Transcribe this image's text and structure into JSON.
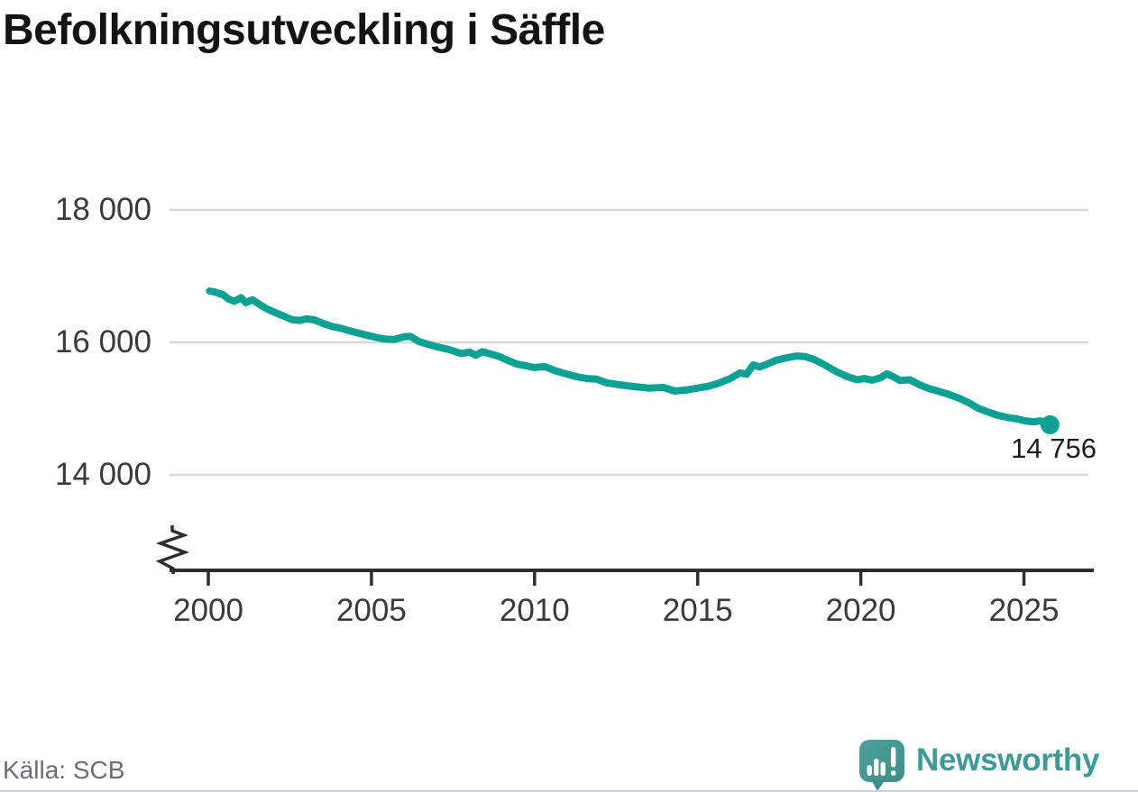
{
  "title": "Befolkningsutveckling i Säffle",
  "source": "Källa: SCB",
  "branding": {
    "name": "Newsworthy"
  },
  "colors": {
    "line": "#0ca193",
    "grid": "#d8d8d8",
    "axis": "#2e2e2e",
    "tick_text": "#3a3a3a",
    "title_text": "#131313",
    "source_text": "#6b6e79",
    "brand_teal": "#3f9a96",
    "brand_icon_light": "#4fa19d",
    "brand_icon_dark": "#3f8d89"
  },
  "chart_data": {
    "type": "line",
    "title": "Befolkningsutveckling i Säffle",
    "xlabel": "",
    "ylabel": "",
    "x_range": [
      1998.8,
      2027.2
    ],
    "y_range_shown": [
      14000,
      18000
    ],
    "y_axis_break": true,
    "grid": "horizontal",
    "legend": "none",
    "y_ticks": [
      {
        "value": 18000,
        "label": "18 000"
      },
      {
        "value": 16000,
        "label": "16 000"
      },
      {
        "value": 14000,
        "label": "14 000"
      }
    ],
    "x_ticks": [
      {
        "value": 2000,
        "label": "2000"
      },
      {
        "value": 2005,
        "label": "2005"
      },
      {
        "value": 2010,
        "label": "2010"
      },
      {
        "value": 2015,
        "label": "2015"
      },
      {
        "value": 2020,
        "label": "2020"
      },
      {
        "value": 2025,
        "label": "2025"
      }
    ],
    "end_label": "14 756",
    "end_value": 14756,
    "series": [
      {
        "name": "Befolkning i Säffle",
        "color": "#0ca193",
        "points": [
          [
            2000.04,
            16775
          ],
          [
            2000.2,
            16760
          ],
          [
            2000.45,
            16720
          ],
          [
            2000.62,
            16655
          ],
          [
            2000.8,
            16620
          ],
          [
            2001.0,
            16675
          ],
          [
            2001.15,
            16600
          ],
          [
            2001.35,
            16645
          ],
          [
            2001.55,
            16580
          ],
          [
            2001.8,
            16505
          ],
          [
            2002.05,
            16450
          ],
          [
            2002.3,
            16400
          ],
          [
            2002.55,
            16345
          ],
          [
            2002.8,
            16330
          ],
          [
            2003.0,
            16355
          ],
          [
            2003.25,
            16340
          ],
          [
            2003.5,
            16290
          ],
          [
            2003.8,
            16240
          ],
          [
            2004.05,
            16215
          ],
          [
            2004.3,
            16180
          ],
          [
            2004.6,
            16140
          ],
          [
            2004.9,
            16105
          ],
          [
            2005.15,
            16075
          ],
          [
            2005.4,
            16050
          ],
          [
            2005.7,
            16045
          ],
          [
            2006.0,
            16085
          ],
          [
            2006.2,
            16090
          ],
          [
            2006.45,
            16015
          ],
          [
            2006.7,
            15975
          ],
          [
            2007.0,
            15935
          ],
          [
            2007.4,
            15890
          ],
          [
            2007.75,
            15830
          ],
          [
            2008.0,
            15855
          ],
          [
            2008.2,
            15805
          ],
          [
            2008.4,
            15860
          ],
          [
            2008.65,
            15825
          ],
          [
            2008.9,
            15790
          ],
          [
            2009.15,
            15735
          ],
          [
            2009.45,
            15675
          ],
          [
            2009.75,
            15645
          ],
          [
            2010.0,
            15620
          ],
          [
            2010.3,
            15635
          ],
          [
            2010.65,
            15570
          ],
          [
            2011.0,
            15520
          ],
          [
            2011.3,
            15480
          ],
          [
            2011.6,
            15455
          ],
          [
            2011.9,
            15445
          ],
          [
            2012.2,
            15390
          ],
          [
            2012.6,
            15360
          ],
          [
            2013.0,
            15335
          ],
          [
            2013.5,
            15310
          ],
          [
            2013.95,
            15320
          ],
          [
            2014.3,
            15265
          ],
          [
            2014.7,
            15285
          ],
          [
            2015.0,
            15310
          ],
          [
            2015.35,
            15340
          ],
          [
            2015.65,
            15385
          ],
          [
            2016.0,
            15455
          ],
          [
            2016.3,
            15540
          ],
          [
            2016.5,
            15520
          ],
          [
            2016.7,
            15660
          ],
          [
            2016.9,
            15630
          ],
          [
            2017.1,
            15665
          ],
          [
            2017.4,
            15730
          ],
          [
            2017.75,
            15770
          ],
          [
            2018.05,
            15795
          ],
          [
            2018.3,
            15785
          ],
          [
            2018.55,
            15745
          ],
          [
            2018.8,
            15685
          ],
          [
            2019.05,
            15615
          ],
          [
            2019.3,
            15545
          ],
          [
            2019.6,
            15480
          ],
          [
            2019.9,
            15435
          ],
          [
            2020.1,
            15455
          ],
          [
            2020.35,
            15430
          ],
          [
            2020.6,
            15465
          ],
          [
            2020.8,
            15525
          ],
          [
            2021.0,
            15480
          ],
          [
            2021.2,
            15425
          ],
          [
            2021.5,
            15435
          ],
          [
            2021.8,
            15360
          ],
          [
            2022.1,
            15300
          ],
          [
            2022.4,
            15260
          ],
          [
            2022.7,
            15215
          ],
          [
            2023.0,
            15160
          ],
          [
            2023.3,
            15090
          ],
          [
            2023.6,
            15005
          ],
          [
            2023.9,
            14950
          ],
          [
            2024.2,
            14900
          ],
          [
            2024.5,
            14865
          ],
          [
            2024.8,
            14843
          ],
          [
            2025.05,
            14815
          ],
          [
            2025.3,
            14800
          ],
          [
            2025.5,
            14815
          ],
          [
            2025.65,
            14785
          ],
          [
            2025.8,
            14756
          ]
        ]
      }
    ]
  }
}
